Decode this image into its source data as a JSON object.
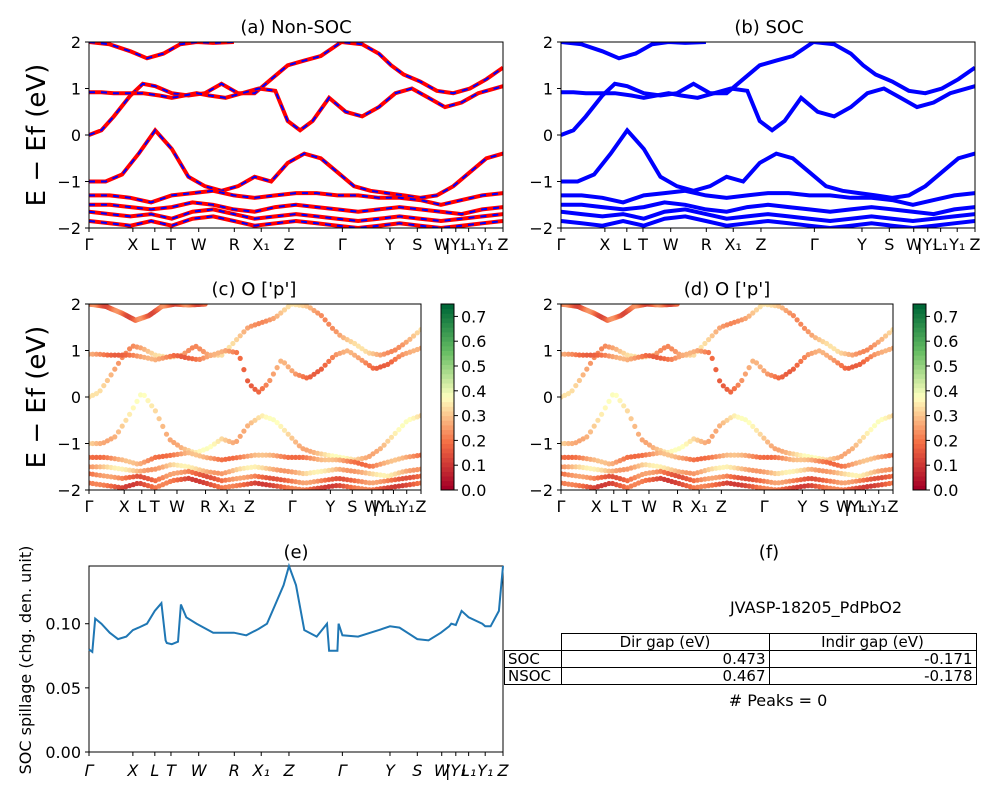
{
  "kpath": {
    "labels": [
      "Γ",
      "X",
      "L",
      "T",
      "W",
      "R",
      "X₁",
      "Z",
      "Γ",
      "Y",
      "S",
      "W",
      "|Y₁",
      "L₁",
      "Y₁",
      "Z"
    ],
    "positions": [
      0,
      0.106,
      0.159,
      0.198,
      0.265,
      0.351,
      0.416,
      0.483,
      0.612,
      0.727,
      0.793,
      0.852,
      0.886,
      0.917,
      0.957,
      1.0
    ]
  },
  "panels": {
    "a": {
      "title": "(a) Non-SOC",
      "ylabel": "E − Ef (eV)"
    },
    "b": {
      "title": "(b) SOC"
    },
    "c": {
      "title": "(c)  O ['p']",
      "ylabel": "E − Ef (eV)"
    },
    "d": {
      "title": "(d) O ['p']"
    },
    "e": {
      "title": "(e)",
      "ylabel": "SOC spillage (chg. den. unit)"
    },
    "f": {
      "title": "(f)"
    }
  },
  "colorbar": {
    "ticks": [
      "0.0",
      "0.1",
      "0.2",
      "0.3",
      "0.4",
      "0.5",
      "0.6",
      "0.7"
    ],
    "min": 0,
    "max": 0.75
  },
  "colors": {
    "nsoc": "#ff0000",
    "soc": "#0000ff",
    "spill": "#1f77b4"
  },
  "chart_data": [
    {
      "panel": "a",
      "type": "line",
      "title": "(a) Non-SOC",
      "ylabel": "E − Ef (eV)",
      "ylim": [
        -2,
        2
      ],
      "series": [
        {
          "x": [
            0,
            0.05,
            0.1,
            0.14,
            0.18,
            0.22,
            0.26,
            0.3,
            0.35
          ],
          "values": [
            2.0,
            1.95,
            1.8,
            1.65,
            1.75,
            1.95,
            2.0,
            1.98,
            2.0
          ]
        },
        {
          "x": [
            0,
            0.03,
            0.06,
            0.1,
            0.13,
            0.16,
            0.2,
            0.24,
            0.28,
            0.32,
            0.36,
            0.4,
            0.44,
            0.48,
            0.52,
            0.56,
            0.61,
            0.66,
            0.7,
            0.73,
            0.76,
            0.8,
            0.84,
            0.88,
            0.92,
            0.96,
            1.0
          ],
          "values": [
            0.0,
            0.1,
            0.4,
            0.85,
            1.1,
            1.05,
            0.9,
            0.85,
            0.9,
            1.1,
            0.9,
            0.9,
            1.2,
            1.5,
            1.6,
            1.7,
            2.0,
            1.95,
            1.75,
            1.5,
            1.3,
            1.15,
            0.95,
            0.9,
            1.0,
            1.2,
            1.45
          ]
        },
        {
          "x": [
            0,
            0.03,
            0.06,
            0.1,
            0.13,
            0.17,
            0.2,
            0.23,
            0.26,
            0.29,
            0.33,
            0.37,
            0.41,
            0.45,
            0.48,
            0.51,
            0.54,
            0.58,
            0.62,
            0.66,
            0.7,
            0.74,
            0.78,
            0.82,
            0.86,
            0.9,
            0.94,
            1.0
          ],
          "values": [
            0.92,
            0.92,
            0.9,
            0.9,
            0.9,
            0.85,
            0.8,
            0.85,
            0.9,
            0.85,
            0.8,
            0.9,
            1.0,
            0.95,
            0.3,
            0.1,
            0.3,
            0.8,
            0.5,
            0.4,
            0.6,
            0.9,
            1.0,
            0.8,
            0.6,
            0.7,
            0.9,
            1.05
          ]
        },
        {
          "x": [
            0,
            0.04,
            0.08,
            0.12,
            0.16,
            0.2,
            0.24,
            0.28,
            0.32,
            0.36,
            0.4,
            0.44,
            0.48,
            0.52,
            0.56,
            0.6,
            0.64,
            0.68,
            0.72,
            0.76,
            0.8,
            0.84,
            0.88,
            0.92,
            0.96,
            1.0
          ],
          "values": [
            -1.0,
            -1.0,
            -0.85,
            -0.4,
            0.1,
            -0.3,
            -0.9,
            -1.1,
            -1.2,
            -1.1,
            -0.9,
            -1.0,
            -0.6,
            -0.4,
            -0.5,
            -0.8,
            -1.1,
            -1.2,
            -1.25,
            -1.3,
            -1.35,
            -1.3,
            -1.1,
            -0.8,
            -0.5,
            -0.4
          ]
        },
        {
          "x": [
            0,
            0.05,
            0.1,
            0.15,
            0.2,
            0.25,
            0.3,
            0.35,
            0.4,
            0.45,
            0.5,
            0.55,
            0.6,
            0.65,
            0.7,
            0.75,
            0.8,
            0.85,
            0.9,
            0.95,
            1.0
          ],
          "values": [
            -1.3,
            -1.3,
            -1.35,
            -1.45,
            -1.3,
            -1.25,
            -1.2,
            -1.3,
            -1.35,
            -1.3,
            -1.25,
            -1.25,
            -1.3,
            -1.3,
            -1.35,
            -1.35,
            -1.4,
            -1.5,
            -1.4,
            -1.3,
            -1.25
          ]
        },
        {
          "x": [
            0,
            0.05,
            0.1,
            0.15,
            0.2,
            0.25,
            0.3,
            0.35,
            0.4,
            0.45,
            0.5,
            0.55,
            0.6,
            0.65,
            0.7,
            0.75,
            0.8,
            0.85,
            0.9,
            0.95,
            1.0
          ],
          "values": [
            -1.5,
            -1.5,
            -1.55,
            -1.6,
            -1.55,
            -1.45,
            -1.5,
            -1.6,
            -1.65,
            -1.55,
            -1.5,
            -1.55,
            -1.6,
            -1.65,
            -1.6,
            -1.55,
            -1.6,
            -1.65,
            -1.7,
            -1.6,
            -1.55
          ]
        },
        {
          "x": [
            0,
            0.05,
            0.1,
            0.15,
            0.2,
            0.25,
            0.3,
            0.35,
            0.4,
            0.45,
            0.5,
            0.55,
            0.6,
            0.65,
            0.7,
            0.75,
            0.8,
            0.85,
            0.9,
            0.95,
            1.0
          ],
          "values": [
            -1.65,
            -1.7,
            -1.75,
            -1.7,
            -1.8,
            -1.65,
            -1.6,
            -1.7,
            -1.8,
            -1.75,
            -1.7,
            -1.75,
            -1.8,
            -1.85,
            -1.8,
            -1.75,
            -1.8,
            -1.85,
            -1.8,
            -1.75,
            -1.7
          ]
        },
        {
          "x": [
            0,
            0.05,
            0.1,
            0.15,
            0.2,
            0.25,
            0.3,
            0.35,
            0.4,
            0.45,
            0.5,
            0.55,
            0.6,
            0.65,
            0.7,
            0.75,
            0.8,
            0.85,
            0.9,
            0.95,
            1.0
          ],
          "values": [
            -1.85,
            -1.9,
            -1.95,
            -1.85,
            -1.95,
            -1.8,
            -1.75,
            -1.85,
            -1.95,
            -1.9,
            -1.85,
            -1.9,
            -1.95,
            -2.0,
            -1.95,
            -1.9,
            -1.95,
            -2.0,
            -1.95,
            -1.9,
            -1.85
          ]
        }
      ]
    },
    {
      "panel": "b",
      "type": "line",
      "title": "(b) SOC",
      "ylim": [
        -2,
        2
      ],
      "same_bands_as": "a"
    },
    {
      "panel": "c",
      "type": "scatter",
      "title": "(c)  O ['p']",
      "ylabel": "E − Ef (eV)",
      "ylim": [
        -2,
        2
      ],
      "colormap": "RdYlGn",
      "clim": [
        0,
        0.75
      ],
      "band_weights": [
        0.18,
        0.28,
        0.22,
        0.32,
        0.24,
        0.3,
        0.2,
        0.16
      ]
    },
    {
      "panel": "d",
      "type": "scatter",
      "title": "(d) O ['p']",
      "ylim": [
        -2,
        2
      ],
      "colormap": "RdYlGn",
      "clim": [
        0,
        0.75
      ],
      "band_weights": [
        0.18,
        0.28,
        0.22,
        0.32,
        0.24,
        0.3,
        0.2,
        0.16
      ]
    },
    {
      "panel": "e",
      "type": "line",
      "title": "(e)",
      "ylabel": "SOC spillage (chg. den. unit)",
      "ylim": [
        0,
        0.145
      ],
      "yticks": [
        "0.00",
        "0.05",
        "0.10"
      ],
      "x": [
        0,
        0.008,
        0.015,
        0.03,
        0.05,
        0.07,
        0.09,
        0.106,
        0.12,
        0.14,
        0.159,
        0.175,
        0.185,
        0.188,
        0.2,
        0.215,
        0.222,
        0.235,
        0.26,
        0.3,
        0.35,
        0.38,
        0.41,
        0.43,
        0.45,
        0.47,
        0.483,
        0.5,
        0.52,
        0.55,
        0.575,
        0.58,
        0.6,
        0.603,
        0.612,
        0.65,
        0.7,
        0.727,
        0.75,
        0.793,
        0.82,
        0.85,
        0.87,
        0.875,
        0.886,
        0.9,
        0.917,
        0.95,
        0.957,
        0.97,
        0.99,
        1.0
      ],
      "values": [
        0.08,
        0.078,
        0.104,
        0.1,
        0.093,
        0.088,
        0.09,
        0.095,
        0.097,
        0.1,
        0.11,
        0.116,
        0.087,
        0.085,
        0.084,
        0.086,
        0.115,
        0.105,
        0.1,
        0.093,
        0.093,
        0.091,
        0.096,
        0.1,
        0.115,
        0.13,
        0.145,
        0.13,
        0.095,
        0.09,
        0.1,
        0.079,
        0.079,
        0.1,
        0.091,
        0.09,
        0.095,
        0.098,
        0.097,
        0.088,
        0.087,
        0.093,
        0.098,
        0.1,
        0.099,
        0.11,
        0.105,
        0.1,
        0.098,
        0.098,
        0.11,
        0.145
      ]
    }
  ],
  "table": {
    "title": "JVASP-18205_PdPbO2",
    "headers": [
      "Dir gap (eV)",
      "Indir gap (eV)"
    ],
    "rows": [
      {
        "label": "SOC",
        "dir": "0.473",
        "indir": "-0.171"
      },
      {
        "label": "NSOC",
        "dir": "0.467",
        "indir": "-0.178"
      }
    ],
    "footer": "# Peaks = 0"
  },
  "yticks_bands": [
    "2",
    "1",
    "0",
    "−1",
    "−2"
  ]
}
